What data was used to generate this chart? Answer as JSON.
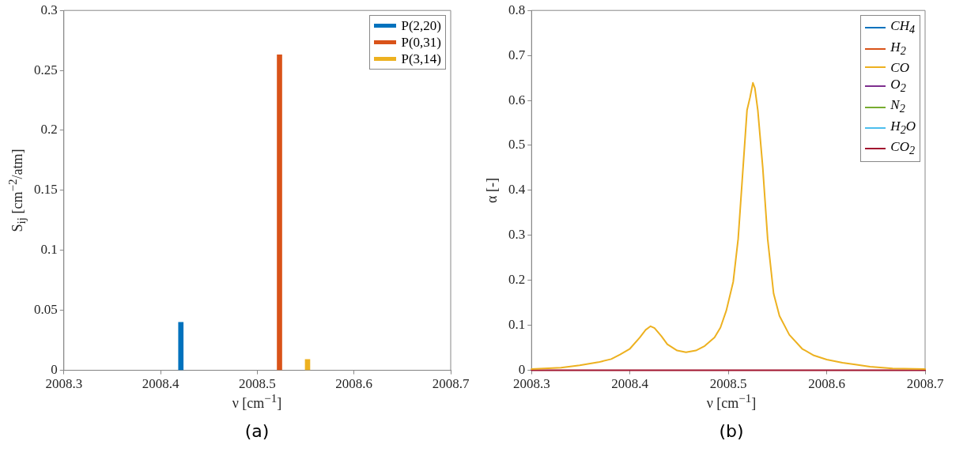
{
  "chart_data": [
    {
      "type": "bar",
      "xlabel": "ν [cm$^{−1}$]",
      "ylabel": "S$_{ij}$ [cm$^{−2}$/atm]",
      "annotations": [
        "(a)"
      ],
      "legend": "top right",
      "xlim": [
        2008.3,
        2008.7
      ],
      "xticks": [
        2008.3,
        2008.4,
        2008.5,
        2008.6,
        2008.7
      ],
      "ylim": [
        0,
        0.3
      ],
      "yticks": [
        0,
        0.05,
        0.1,
        0.15,
        0.2,
        0.25,
        0.3
      ],
      "series": [
        {
          "name": "P(2,20)",
          "color": "#0072bd",
          "x": [
            2008.421
          ],
          "values": [
            0.04
          ]
        },
        {
          "name": "P(0,31)",
          "color": "#d95319",
          "x": [
            2008.523
          ],
          "values": [
            0.263
          ]
        },
        {
          "name": "P(3,14)",
          "color": "#edb120",
          "x": [
            2008.552
          ],
          "values": [
            0.009
          ]
        }
      ]
    },
    {
      "type": "line",
      "xlabel": "ν [cm$^{−1}$]",
      "ylabel": "α [-]",
      "annotations": [
        "(b)"
      ],
      "legend": "top right",
      "xlim": [
        2008.3,
        2008.7
      ],
      "xticks": [
        2008.3,
        2008.4,
        2008.5,
        2008.6,
        2008.7
      ],
      "ylim": [
        0,
        0.8
      ],
      "yticks": [
        0,
        0.1,
        0.2,
        0.3,
        0.4,
        0.5,
        0.6,
        0.7,
        0.8
      ],
      "series": [
        {
          "name": "CH$_{4}$",
          "color": "#0072bd"
        },
        {
          "name": "H$_{2}$",
          "color": "#d95319"
        },
        {
          "name": "CO",
          "color": "#edb120",
          "x": [
            2008.3,
            2008.33,
            2008.349,
            2008.368,
            2008.381,
            2008.39,
            2008.4,
            2008.41,
            2008.416,
            2008.421,
            2008.425,
            2008.432,
            2008.438,
            2008.448,
            2008.457,
            2008.467,
            2008.476,
            2008.486,
            2008.492,
            2008.498,
            2008.505,
            2008.51,
            2008.514,
            2008.519,
            2008.522,
            2008.525,
            2008.527,
            2008.53,
            2008.535,
            2008.54,
            2008.546,
            2008.552,
            2008.562,
            2008.575,
            2008.587,
            2008.6,
            2008.616,
            2008.629,
            2008.644,
            2008.667,
            2008.7
          ],
          "values": [
            0.003,
            0.006,
            0.011,
            0.018,
            0.025,
            0.035,
            0.048,
            0.073,
            0.09,
            0.098,
            0.094,
            0.076,
            0.058,
            0.044,
            0.04,
            0.044,
            0.054,
            0.073,
            0.095,
            0.133,
            0.197,
            0.292,
            0.419,
            0.578,
            0.606,
            0.639,
            0.627,
            0.578,
            0.451,
            0.292,
            0.171,
            0.121,
            0.079,
            0.048,
            0.033,
            0.024,
            0.017,
            0.013,
            0.008,
            0.004,
            0.003
          ]
        },
        {
          "name": "O$_{2}$",
          "color": "#7e2f8e"
        },
        {
          "name": "N$_{2}$",
          "color": "#77ac30"
        },
        {
          "name": "H$_{2}$O",
          "color": "#4dbeee"
        },
        {
          "name": "CO$_{2}$",
          "color": "#a2142f",
          "x": [
            2008.3,
            2008.7
          ],
          "values": [
            0,
            0
          ]
        }
      ]
    }
  ]
}
